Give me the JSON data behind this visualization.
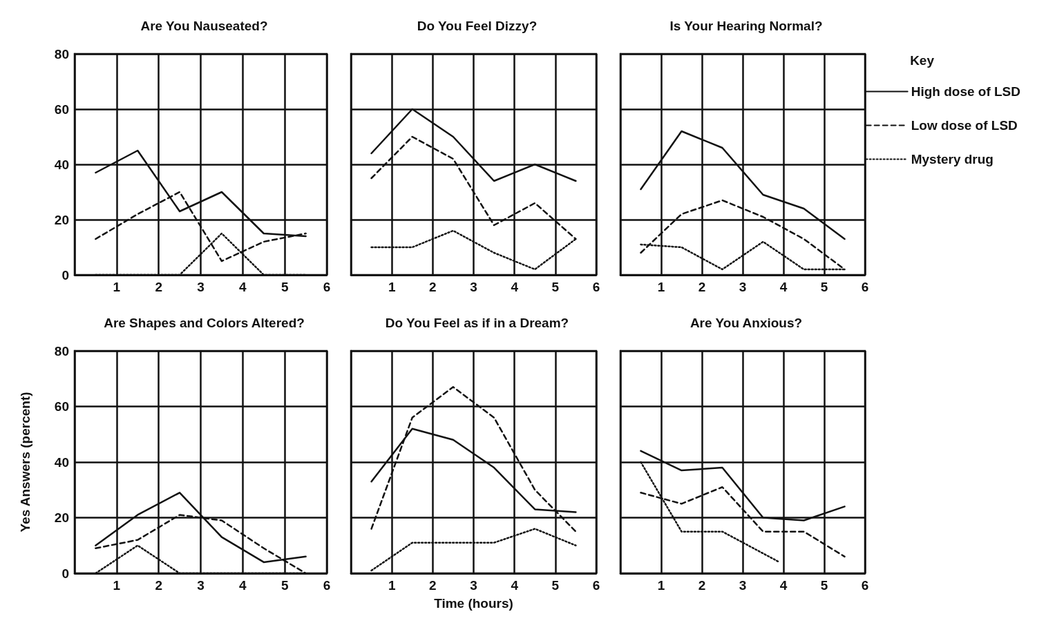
{
  "chart_data": [
    {
      "type": "line",
      "title": "Are You Nauseated?",
      "x": [
        0.5,
        1.5,
        2.5,
        3.5,
        4.5,
        5.5
      ],
      "xlim": [
        0,
        6
      ],
      "xticks": [
        1,
        2,
        3,
        4,
        5,
        6
      ],
      "ylim": [
        0,
        80
      ],
      "yticks": [
        0,
        20,
        40,
        60,
        80
      ],
      "grid": true,
      "marker": "none",
      "series": [
        {
          "color": "#111111",
          "line_style": "solid",
          "values": [
            37,
            45,
            23,
            30,
            15,
            14
          ]
        },
        {
          "color": "#111111",
          "line_style": "dashed",
          "values": [
            13,
            22,
            30,
            5,
            12,
            15
          ]
        },
        {
          "color": "#111111",
          "line_style": "dotted",
          "values": [
            0,
            0,
            0,
            15,
            0,
            0
          ]
        }
      ]
    },
    {
      "type": "line",
      "title": "Do You Feel Dizzy?",
      "x": [
        0.5,
        1.5,
        2.5,
        3.5,
        4.5,
        5.5
      ],
      "xlim": [
        0,
        6
      ],
      "xticks": [
        1,
        2,
        3,
        4,
        5,
        6
      ],
      "ylim": [
        0,
        80
      ],
      "yticks": [
        0,
        20,
        40,
        60,
        80
      ],
      "tick_labels": "x",
      "grid": true,
      "marker": "none",
      "series": [
        {
          "color": "#111111",
          "line_style": "solid",
          "values": [
            44,
            60,
            50,
            34,
            40,
            34
          ]
        },
        {
          "color": "#111111",
          "line_style": "dashed",
          "values": [
            35,
            50,
            42,
            18,
            26,
            13
          ]
        },
        {
          "color": "#111111",
          "line_style": "dotted",
          "values": [
            10,
            10,
            16,
            8,
            2,
            13
          ]
        }
      ]
    },
    {
      "type": "line",
      "title": "Is Your Hearing Normal?",
      "legend_title": "Key",
      "legend": "right",
      "x": [
        0.5,
        1.5,
        2.5,
        3.5,
        4.5,
        5.5
      ],
      "xlim": [
        0,
        6
      ],
      "xticks": [
        1,
        2,
        3,
        4,
        5,
        6
      ],
      "ylim": [
        0,
        80
      ],
      "yticks": [
        0,
        20,
        40,
        60,
        80
      ],
      "tick_labels": "x",
      "grid": true,
      "marker": "none",
      "series": [
        {
          "name": "High dose of LSD",
          "color": "#111111",
          "line_style": "solid",
          "values": [
            31,
            52,
            46,
            29,
            24,
            13
          ]
        },
        {
          "name": "Low dose of LSD",
          "color": "#111111",
          "line_style": "dashed",
          "values": [
            8,
            22,
            27,
            21,
            13,
            2
          ]
        },
        {
          "name": "Mystery drug",
          "color": "#111111",
          "line_style": "dotted",
          "values": [
            11,
            10,
            2,
            12,
            2,
            2
          ]
        }
      ]
    },
    {
      "type": "line",
      "title": "Are Shapes and Colors Altered?",
      "ylabel": "Yes Answers (percent)",
      "x": [
        0.5,
        1.5,
        2.5,
        3.5,
        4.5,
        5.5
      ],
      "xlim": [
        0,
        6
      ],
      "xticks": [
        1,
        2,
        3,
        4,
        5,
        6
      ],
      "ylim": [
        0,
        80
      ],
      "yticks": [
        0,
        20,
        40,
        60,
        80
      ],
      "grid": true,
      "marker": "none",
      "series": [
        {
          "color": "#111111",
          "line_style": "solid",
          "values": [
            10,
            21,
            29,
            13,
            4,
            6
          ]
        },
        {
          "color": "#111111",
          "line_style": "dashed",
          "values": [
            9,
            12,
            21,
            19,
            9,
            0
          ]
        },
        {
          "color": "#111111",
          "line_style": "dotted",
          "values": [
            0,
            10,
            0,
            0,
            0,
            0
          ]
        }
      ]
    },
    {
      "type": "line",
      "title": "Do You Feel as if in a Dream?",
      "xlabel": "Time (hours)",
      "x": [
        0.5,
        1.5,
        2.5,
        3.5,
        4.5,
        5.5
      ],
      "xlim": [
        0,
        6
      ],
      "xticks": [
        1,
        2,
        3,
        4,
        5,
        6
      ],
      "ylim": [
        0,
        80
      ],
      "yticks": [
        0,
        20,
        40,
        60,
        80
      ],
      "tick_labels": "x",
      "grid": true,
      "marker": "none",
      "series": [
        {
          "color": "#111111",
          "line_style": "solid",
          "values": [
            33,
            52,
            48,
            38,
            23,
            22
          ]
        },
        {
          "color": "#111111",
          "line_style": "dashed",
          "values": [
            16,
            56,
            67,
            56,
            30,
            15
          ]
        },
        {
          "color": "#111111",
          "line_style": "dotted",
          "values": [
            1,
            11,
            11,
            11,
            16,
            10
          ]
        }
      ]
    },
    {
      "type": "line",
      "title": "Are You Anxious?",
      "x": [
        0.5,
        1.5,
        2.5,
        3.5,
        4.5,
        5.5
      ],
      "xlim": [
        0,
        6
      ],
      "xticks": [
        1,
        2,
        3,
        4,
        5,
        6
      ],
      "ylim": [
        0,
        80
      ],
      "yticks": [
        0,
        20,
        40,
        60,
        80
      ],
      "tick_labels": "x",
      "grid": true,
      "marker": "none",
      "series": [
        {
          "color": "#111111",
          "line_style": "solid",
          "values": [
            44,
            37,
            38,
            20,
            19,
            24
          ]
        },
        {
          "color": "#111111",
          "line_style": "dashed",
          "values": [
            29,
            25,
            31,
            15,
            15,
            6
          ]
        },
        {
          "color": "#111111",
          "line_style": "dotted",
          "x": [
            0.5,
            1.5,
            2.5,
            3.9
          ],
          "values": [
            40,
            15,
            15,
            4
          ]
        }
      ]
    }
  ]
}
